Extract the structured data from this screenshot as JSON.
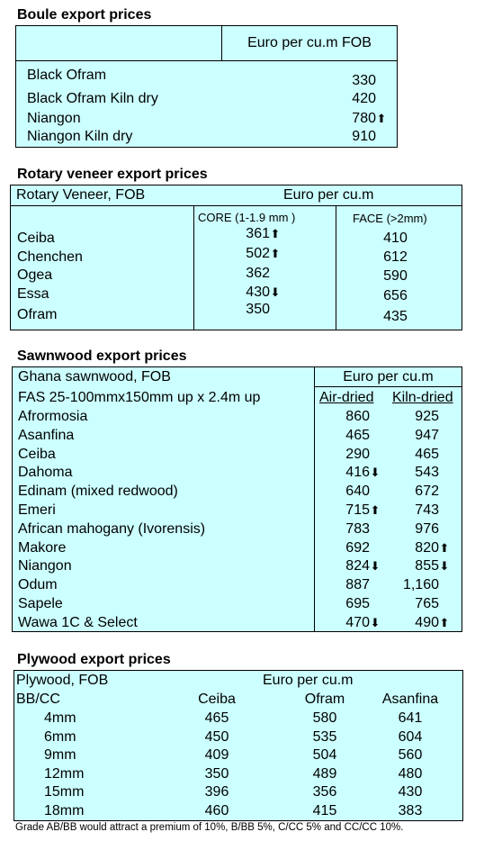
{
  "boule": {
    "title": "Boule export prices",
    "column_header": "Euro per cu.m FOB",
    "rows": [
      {
        "name": "Black Ofram",
        "value": "330",
        "arrow": ""
      },
      {
        "name": "Black Ofram  Kiln dry",
        "value": "420",
        "arrow": ""
      },
      {
        "name": "Niangon",
        "value": "780",
        "arrow": "up"
      },
      {
        "name": "Niangon Kiln dry",
        "value": "910",
        "arrow": ""
      }
    ]
  },
  "veneer": {
    "title": "Rotary veneer export prices",
    "header_left": "Rotary Veneer,  FOB",
    "header_right": "Euro  per cu.m",
    "core_header": "CORE (1-1.9 mm )",
    "face_header": "FACE (>2mm)",
    "rows": [
      {
        "name": "Ceiba",
        "core": "361",
        "core_arrow": "up",
        "face": "410"
      },
      {
        "name": "Chenchen",
        "core": "502",
        "core_arrow": "up",
        "face": "612"
      },
      {
        "name": "Ogea",
        "core": "362",
        "core_arrow": "",
        "face": "590"
      },
      {
        "name": "Essa",
        "core": "430",
        "core_arrow": "down",
        "face": "656"
      },
      {
        "name": "Ofram",
        "core": "350",
        "core_arrow": "",
        "face": "435"
      }
    ]
  },
  "sawnwood": {
    "title": "Sawnwood export prices",
    "header_left": "Ghana sawnwood, FOB",
    "header_right": "Euro per cu.m",
    "sub_left": "FAS 25-100mmx150mm up x 2.4m up",
    "air_header": "Air-dried",
    "kiln_header": "Kiln-dried",
    "rows": [
      {
        "name": "Afrormosia",
        "air": "860",
        "air_arrow": "",
        "kiln": "925",
        "kiln_arrow": ""
      },
      {
        "name": "Asanfina",
        "air": "465",
        "air_arrow": "",
        "kiln": "947",
        "kiln_arrow": ""
      },
      {
        "name": "Ceiba",
        "air": "290",
        "air_arrow": "",
        "kiln": "465",
        "kiln_arrow": ""
      },
      {
        "name": "Dahoma",
        "air": "416",
        "air_arrow": "down",
        "kiln": "543",
        "kiln_arrow": ""
      },
      {
        "name": "Edinam (mixed redwood)",
        "air": "640",
        "air_arrow": "",
        "kiln": "672",
        "kiln_arrow": ""
      },
      {
        "name": "Emeri",
        "air": "715",
        "air_arrow": "up",
        "kiln": "743",
        "kiln_arrow": ""
      },
      {
        "name": "African mahogany (Ivorensis)",
        "air": "783",
        "air_arrow": "",
        "kiln": "976",
        "kiln_arrow": ""
      },
      {
        "name": "Makore",
        "air": "692",
        "air_arrow": "",
        "kiln": "820",
        "kiln_arrow": "up"
      },
      {
        "name": "Niangon",
        "air": "824",
        "air_arrow": "down",
        "kiln": "855",
        "kiln_arrow": "down"
      },
      {
        "name": "Odum",
        "air": "887",
        "air_arrow": "",
        "kiln": "1,160",
        "kiln_arrow": ""
      },
      {
        "name": "Sapele",
        "air": "695",
        "air_arrow": "",
        "kiln": "765",
        "kiln_arrow": ""
      },
      {
        "name": "Wawa 1C & Select",
        "air": "470",
        "air_arrow": "down",
        "kiln": "490",
        "kiln_arrow": "up"
      }
    ]
  },
  "plywood": {
    "title": "Plywood export prices",
    "header_left": "Plywood, FOB",
    "header_right": "Euro per cu.m",
    "grade_label": "BB/CC",
    "columns": [
      "Ceiba",
      "Ofram",
      "Asanfina"
    ],
    "rows": [
      {
        "size": "4mm",
        "values": [
          "465",
          "580",
          "641"
        ]
      },
      {
        "size": "6mm",
        "values": [
          "450",
          "535",
          "604"
        ]
      },
      {
        "size": "9mm",
        "values": [
          "409",
          "504",
          "560"
        ]
      },
      {
        "size": "12mm",
        "values": [
          "350",
          "489",
          "480"
        ]
      },
      {
        "size": "15mm",
        "values": [
          "396",
          "356",
          "430"
        ]
      },
      {
        "size": "18mm",
        "values": [
          "460",
          "415",
          "383"
        ]
      }
    ],
    "footnote": "Grade AB/BB would attract a premium of 10%, B/BB 5%, C/CC 5% and CC/CC 10%."
  }
}
